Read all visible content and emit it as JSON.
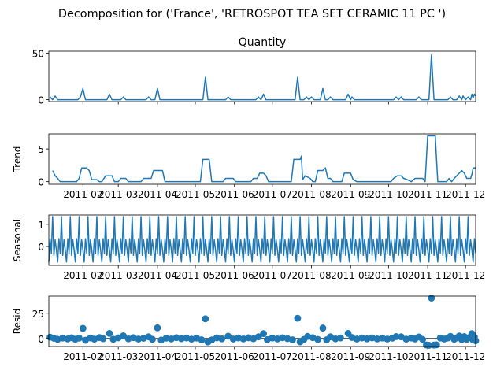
{
  "figure": {
    "suptitle": "Decomposition for ('France', 'RETROSPOT TEA SET CERAMIC 11 PC ')"
  },
  "x_axis": {
    "range": [
      "2011-01-05",
      "2011-12-09"
    ],
    "tick_dates": [
      "2011-02-01",
      "2011-03-01",
      "2011-04-01",
      "2011-05-01",
      "2011-06-01",
      "2011-07-01",
      "2011-08-01",
      "2011-09-01",
      "2011-10-01",
      "2011-11-01",
      "2011-12-01"
    ],
    "tick_labels": [
      "2011-02",
      "2011-03",
      "2011-04",
      "2011-05",
      "2011-06",
      "2011-07",
      "2011-08",
      "2011-09",
      "2011-10",
      "2011-11",
      "2011-12"
    ]
  },
  "chart_data": [
    {
      "type": "line",
      "title": "Quantity",
      "ylabel": "",
      "ylim": [
        -2,
        52
      ],
      "yticks": [
        0,
        50
      ],
      "grid": false,
      "points": [
        [
          "2011-01-06",
          3
        ],
        [
          "2011-01-08",
          0
        ],
        [
          "2011-01-10",
          4
        ],
        [
          "2011-01-12",
          0
        ],
        [
          "2011-01-28",
          0
        ],
        [
          "2011-01-30",
          3
        ],
        [
          "2011-02-01",
          12
        ],
        [
          "2011-02-03",
          0
        ],
        [
          "2011-02-20",
          0
        ],
        [
          "2011-02-22",
          6
        ],
        [
          "2011-02-24",
          0
        ],
        [
          "2011-03-03",
          0
        ],
        [
          "2011-03-05",
          3
        ],
        [
          "2011-03-07",
          0
        ],
        [
          "2011-03-23",
          0
        ],
        [
          "2011-03-25",
          3
        ],
        [
          "2011-03-27",
          0
        ],
        [
          "2011-03-30",
          0
        ],
        [
          "2011-04-01",
          12
        ],
        [
          "2011-04-03",
          0
        ],
        [
          "2011-05-07",
          0
        ],
        [
          "2011-05-09",
          24
        ],
        [
          "2011-05-11",
          0
        ],
        [
          "2011-05-25",
          0
        ],
        [
          "2011-05-27",
          3
        ],
        [
          "2011-05-29",
          0
        ],
        [
          "2011-06-18",
          0
        ],
        [
          "2011-06-20",
          3
        ],
        [
          "2011-06-22",
          0
        ],
        [
          "2011-06-24",
          6
        ],
        [
          "2011-06-26",
          0
        ],
        [
          "2011-07-19",
          0
        ],
        [
          "2011-07-21",
          24
        ],
        [
          "2011-07-23",
          0
        ],
        [
          "2011-07-26",
          0
        ],
        [
          "2011-07-28",
          3
        ],
        [
          "2011-07-30",
          0
        ],
        [
          "2011-08-01",
          3
        ],
        [
          "2011-08-03",
          0
        ],
        [
          "2011-08-08",
          0
        ],
        [
          "2011-08-10",
          12
        ],
        [
          "2011-08-12",
          0
        ],
        [
          "2011-08-14",
          0
        ],
        [
          "2011-08-16",
          3
        ],
        [
          "2011-08-18",
          0
        ],
        [
          "2011-08-28",
          0
        ],
        [
          "2011-08-30",
          6
        ],
        [
          "2011-09-01",
          0
        ],
        [
          "2011-09-02",
          3
        ],
        [
          "2011-09-04",
          0
        ],
        [
          "2011-10-05",
          0
        ],
        [
          "2011-10-07",
          3
        ],
        [
          "2011-10-09",
          0
        ],
        [
          "2011-10-11",
          3
        ],
        [
          "2011-10-13",
          0
        ],
        [
          "2011-10-23",
          0
        ],
        [
          "2011-10-25",
          3
        ],
        [
          "2011-10-27",
          0
        ],
        [
          "2011-11-02",
          0
        ],
        [
          "2011-11-04",
          48
        ],
        [
          "2011-11-06",
          0
        ],
        [
          "2011-11-17",
          0
        ],
        [
          "2011-11-19",
          3
        ],
        [
          "2011-11-21",
          0
        ],
        [
          "2011-11-24",
          0
        ],
        [
          "2011-11-26",
          4
        ],
        [
          "2011-11-28",
          0
        ],
        [
          "2011-11-29",
          4
        ],
        [
          "2011-12-01",
          0
        ],
        [
          "2011-12-03",
          3
        ],
        [
          "2011-12-05",
          0
        ],
        [
          "2011-12-06",
          6
        ],
        [
          "2011-12-07",
          2
        ],
        [
          "2011-12-08",
          6
        ],
        [
          "2011-12-09",
          4
        ]
      ]
    },
    {
      "type": "line",
      "title": "",
      "ylabel": "Trend",
      "ylim": [
        -0.4,
        7.3
      ],
      "yticks": [
        0,
        5
      ],
      "grid": false,
      "points": [
        [
          "2011-01-08",
          1.7
        ],
        [
          "2011-01-10",
          0.9
        ],
        [
          "2011-01-12",
          0.5
        ],
        [
          "2011-01-14",
          0.0
        ],
        [
          "2011-01-27",
          0.0
        ],
        [
          "2011-01-29",
          0.5
        ],
        [
          "2011-01-31",
          2.1
        ],
        [
          "2011-02-04",
          2.1
        ],
        [
          "2011-02-06",
          1.7
        ],
        [
          "2011-02-08",
          0.3
        ],
        [
          "2011-02-12",
          0.3
        ],
        [
          "2011-02-14",
          0.0
        ],
        [
          "2011-02-16",
          0.0
        ],
        [
          "2011-02-19",
          0.9
        ],
        [
          "2011-02-24",
          0.9
        ],
        [
          "2011-02-26",
          0.0
        ],
        [
          "2011-03-01",
          0.0
        ],
        [
          "2011-03-03",
          0.5
        ],
        [
          "2011-03-07",
          0.5
        ],
        [
          "2011-03-09",
          0.0
        ],
        [
          "2011-03-19",
          0.0
        ],
        [
          "2011-03-21",
          0.5
        ],
        [
          "2011-03-27",
          0.5
        ],
        [
          "2011-03-29",
          1.7
        ],
        [
          "2011-04-05",
          1.7
        ],
        [
          "2011-04-07",
          0.0
        ],
        [
          "2011-05-05",
          0.0
        ],
        [
          "2011-05-07",
          3.4
        ],
        [
          "2011-05-12",
          3.4
        ],
        [
          "2011-05-14",
          0.0
        ],
        [
          "2011-05-23",
          0.0
        ],
        [
          "2011-05-25",
          0.5
        ],
        [
          "2011-05-31",
          0.5
        ],
        [
          "2011-06-02",
          0.0
        ],
        [
          "2011-06-14",
          0.0
        ],
        [
          "2011-06-16",
          0.5
        ],
        [
          "2011-06-19",
          0.5
        ],
        [
          "2011-06-21",
          1.3
        ],
        [
          "2011-06-24",
          1.3
        ],
        [
          "2011-06-26",
          0.9
        ],
        [
          "2011-06-28",
          0.0
        ],
        [
          "2011-07-16",
          0.0
        ],
        [
          "2011-07-18",
          3.4
        ],
        [
          "2011-07-23",
          3.4
        ],
        [
          "2011-07-24",
          3.9
        ],
        [
          "2011-07-25",
          0.3
        ],
        [
          "2011-07-27",
          0.9
        ],
        [
          "2011-07-31",
          0.5
        ],
        [
          "2011-08-02",
          0.0
        ],
        [
          "2011-08-04",
          0.0
        ],
        [
          "2011-08-06",
          1.7
        ],
        [
          "2011-08-10",
          1.7
        ],
        [
          "2011-08-12",
          2.1
        ],
        [
          "2011-08-14",
          0.5
        ],
        [
          "2011-08-16",
          0.5
        ],
        [
          "2011-08-18",
          0.0
        ],
        [
          "2011-08-25",
          0.0
        ],
        [
          "2011-08-27",
          1.3
        ],
        [
          "2011-09-01",
          1.3
        ],
        [
          "2011-09-03",
          0.3
        ],
        [
          "2011-09-06",
          0.0
        ],
        [
          "2011-10-03",
          0.0
        ],
        [
          "2011-10-05",
          0.5
        ],
        [
          "2011-10-08",
          0.9
        ],
        [
          "2011-10-11",
          0.9
        ],
        [
          "2011-10-13",
          0.5
        ],
        [
          "2011-10-16",
          0.3
        ],
        [
          "2011-10-19",
          0.0
        ],
        [
          "2011-10-22",
          0.5
        ],
        [
          "2011-10-28",
          0.5
        ],
        [
          "2011-10-30",
          0.0
        ],
        [
          "2011-11-01",
          7.0
        ],
        [
          "2011-11-07",
          7.0
        ],
        [
          "2011-11-09",
          0.0
        ],
        [
          "2011-11-16",
          0.0
        ],
        [
          "2011-11-18",
          0.5
        ],
        [
          "2011-11-20",
          0.0
        ],
        [
          "2011-11-22",
          0.5
        ],
        [
          "2011-11-24",
          0.9
        ],
        [
          "2011-11-26",
          1.3
        ],
        [
          "2011-11-28",
          1.7
        ],
        [
          "2011-11-30",
          1.3
        ],
        [
          "2011-12-02",
          0.5
        ],
        [
          "2011-12-05",
          0.5
        ],
        [
          "2011-12-06",
          1.1
        ],
        [
          "2011-12-07",
          2.1
        ],
        [
          "2011-12-09",
          2.1
        ]
      ]
    },
    {
      "type": "line",
      "title": "",
      "ylabel": "Seasonal",
      "ylim": [
        -0.85,
        1.42
      ],
      "yticks": [
        0,
        1
      ],
      "grid": false,
      "period_pattern": [
        -0.7,
        0.35,
        -0.3,
        1.35,
        -0.4,
        0.3,
        -0.15
      ],
      "x_start": "2011-01-05",
      "x_end": "2011-12-09"
    },
    {
      "type": "scatter",
      "title": "",
      "ylabel": "Resid",
      "ylim": [
        -8,
        42
      ],
      "yticks": [
        0,
        25
      ],
      "grid": false,
      "zero_line": true,
      "points": [
        [
          "2011-01-06",
          1.3
        ],
        [
          "2011-01-09",
          0.2
        ],
        [
          "2011-01-12",
          -0.9
        ],
        [
          "2011-01-16",
          0.4
        ],
        [
          "2011-01-20",
          -0.5
        ],
        [
          "2011-01-23",
          0.7
        ],
        [
          "2011-01-26",
          -0.8
        ],
        [
          "2011-01-29",
          0.3
        ],
        [
          "2011-02-01",
          10.0
        ],
        [
          "2011-02-03",
          -1.8
        ],
        [
          "2011-02-07",
          0.5
        ],
        [
          "2011-02-10",
          -0.7
        ],
        [
          "2011-02-14",
          0.9
        ],
        [
          "2011-02-17",
          -0.3
        ],
        [
          "2011-02-22",
          5.0
        ],
        [
          "2011-02-25",
          -0.8
        ],
        [
          "2011-03-01",
          0.6
        ],
        [
          "2011-03-05",
          2.6
        ],
        [
          "2011-03-09",
          -0.4
        ],
        [
          "2011-03-13",
          0.8
        ],
        [
          "2011-03-17",
          -0.6
        ],
        [
          "2011-03-21",
          0.2
        ],
        [
          "2011-03-25",
          1.6
        ],
        [
          "2011-03-28",
          -0.9
        ],
        [
          "2011-04-01",
          10.5
        ],
        [
          "2011-04-04",
          -1.6
        ],
        [
          "2011-04-08",
          0.3
        ],
        [
          "2011-04-12",
          -0.5
        ],
        [
          "2011-04-16",
          0.8
        ],
        [
          "2011-04-20",
          -0.3
        ],
        [
          "2011-04-24",
          0.5
        ],
        [
          "2011-04-28",
          -0.7
        ],
        [
          "2011-05-02",
          0.4
        ],
        [
          "2011-05-06",
          -1.4
        ],
        [
          "2011-05-09",
          19.5
        ],
        [
          "2011-05-11",
          -3.5
        ],
        [
          "2011-05-14",
          -1.5
        ],
        [
          "2011-05-18",
          0.6
        ],
        [
          "2011-05-22",
          -0.4
        ],
        [
          "2011-05-27",
          2.2
        ],
        [
          "2011-05-31",
          -0.6
        ],
        [
          "2011-06-04",
          0.5
        ],
        [
          "2011-06-08",
          -0.5
        ],
        [
          "2011-06-12",
          0.7
        ],
        [
          "2011-06-16",
          -0.3
        ],
        [
          "2011-06-20",
          1.6
        ],
        [
          "2011-06-24",
          4.8
        ],
        [
          "2011-06-27",
          -1.2
        ],
        [
          "2011-07-01",
          0.4
        ],
        [
          "2011-07-05",
          -0.5
        ],
        [
          "2011-07-09",
          0.7
        ],
        [
          "2011-07-13",
          -0.2
        ],
        [
          "2011-07-17",
          -1.4
        ],
        [
          "2011-07-21",
          20.0
        ],
        [
          "2011-07-23",
          -3.4
        ],
        [
          "2011-07-26",
          -1.0
        ],
        [
          "2011-07-29",
          2.0
        ],
        [
          "2011-08-02",
          0.8
        ],
        [
          "2011-08-06",
          -1.0
        ],
        [
          "2011-08-10",
          10.3
        ],
        [
          "2011-08-13",
          -1.4
        ],
        [
          "2011-08-16",
          1.6
        ],
        [
          "2011-08-20",
          -0.4
        ],
        [
          "2011-08-24",
          0.5
        ],
        [
          "2011-08-30",
          5.0
        ],
        [
          "2011-09-02",
          1.0
        ],
        [
          "2011-09-06",
          -0.6
        ],
        [
          "2011-09-10",
          0.5
        ],
        [
          "2011-09-14",
          -0.4
        ],
        [
          "2011-09-18",
          0.6
        ],
        [
          "2011-09-22",
          -0.5
        ],
        [
          "2011-09-26",
          0.4
        ],
        [
          "2011-09-30",
          -0.6
        ],
        [
          "2011-10-04",
          0.3
        ],
        [
          "2011-10-07",
          1.8
        ],
        [
          "2011-10-11",
          1.6
        ],
        [
          "2011-10-15",
          -0.7
        ],
        [
          "2011-10-19",
          0.4
        ],
        [
          "2011-10-22",
          -0.5
        ],
        [
          "2011-10-25",
          1.5
        ],
        [
          "2011-10-28",
          -1.0
        ],
        [
          "2011-10-31",
          -6.5
        ],
        [
          "2011-11-02",
          -6.8
        ],
        [
          "2011-11-04",
          40.0
        ],
        [
          "2011-11-06",
          -6.6
        ],
        [
          "2011-11-08",
          -6.4
        ],
        [
          "2011-11-11",
          0.4
        ],
        [
          "2011-11-14",
          -0.6
        ],
        [
          "2011-11-17",
          0.5
        ],
        [
          "2011-11-19",
          2.0
        ],
        [
          "2011-11-22",
          -0.8
        ],
        [
          "2011-11-24",
          0.6
        ],
        [
          "2011-11-26",
          2.4
        ],
        [
          "2011-11-28",
          -1.2
        ],
        [
          "2011-11-30",
          1.8
        ],
        [
          "2011-12-02",
          -0.8
        ],
        [
          "2011-12-04",
          1.0
        ],
        [
          "2011-12-06",
          4.8
        ],
        [
          "2011-12-07",
          -1.6
        ],
        [
          "2011-12-08",
          1.4
        ],
        [
          "2011-12-09",
          -2.2
        ]
      ]
    }
  ]
}
